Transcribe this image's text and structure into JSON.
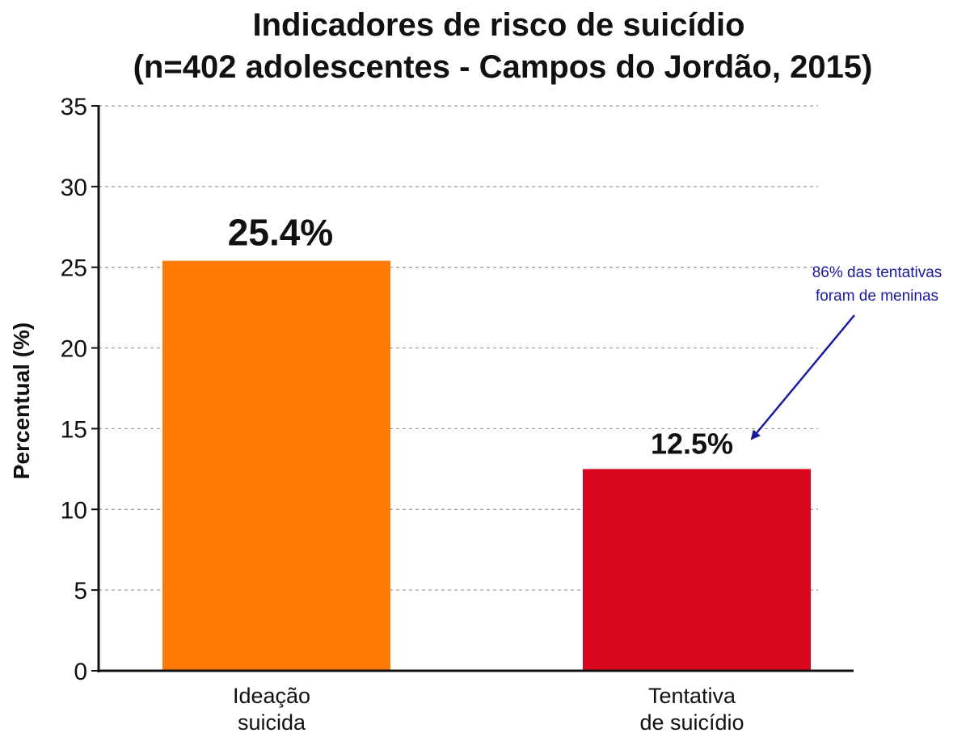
{
  "chart_data": {
    "type": "bar",
    "title": [
      "Indicadores de risco de suicídio",
      "(n=402 adolescentes - Campos do Jordão, 2015)"
    ],
    "xlabel": "",
    "ylabel": "Percentual (%)",
    "ylim": [
      0,
      35
    ],
    "yticks": [
      0,
      5,
      10,
      15,
      20,
      25,
      30,
      35
    ],
    "grid": true,
    "categories": [
      [
        "Ideação",
        "suicida"
      ],
      [
        "Tentativa",
        "de suicídio"
      ]
    ],
    "values": [
      25.4,
      12.5
    ],
    "value_labels": [
      "25.4%",
      "12.5%"
    ],
    "colors": [
      "#fd7a04",
      "#d9071d"
    ],
    "annotation": {
      "text": [
        "86% das tentativas",
        "foram de meninas"
      ],
      "target_category": 1,
      "color": "#1a1aa0"
    }
  }
}
